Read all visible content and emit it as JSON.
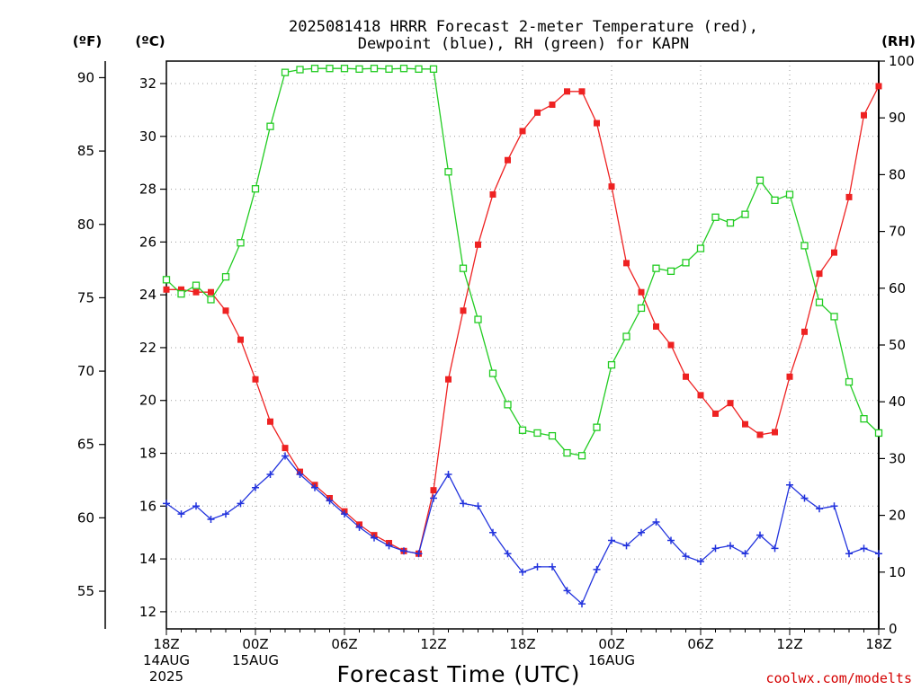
{
  "chart_data": {
    "type": "line",
    "title_line1": "2025081418 HRRR Forecast 2-meter Temperature (red),",
    "title_line2": "Dewpoint (blue), RH (green) for KAPN",
    "xlabel": "Forecast Time (UTC)",
    "credit": "coolwx.com/modelts",
    "unit_f": "(ºF)",
    "unit_c": "(ºC)",
    "unit_rh": "(RH)",
    "x_hours_range": [
      0,
      48
    ],
    "celsius_range": [
      11.35,
      32.85
    ],
    "rh_range": [
      0,
      100
    ],
    "left_f_ticks": [
      "90",
      "85",
      "80",
      "75",
      "70",
      "65",
      "60",
      "55"
    ],
    "left_f_values": [
      90,
      85,
      80,
      75,
      70,
      65,
      60,
      55
    ],
    "left_c_ticks": [
      "32",
      "30",
      "28",
      "26",
      "24",
      "22",
      "20",
      "18",
      "16",
      "14",
      "12"
    ],
    "left_c_values": [
      32,
      30,
      28,
      26,
      24,
      22,
      20,
      18,
      16,
      14,
      12
    ],
    "right_rh_ticks": [
      "100",
      "90",
      "80",
      "70",
      "60",
      "50",
      "40",
      "30",
      "20",
      "10",
      "0"
    ],
    "right_rh_values": [
      100,
      90,
      80,
      70,
      60,
      50,
      40,
      30,
      20,
      10,
      0
    ],
    "x_ticks": [
      {
        "hour": 0,
        "label": "18Z",
        "sub1": "14AUG",
        "sub2": "2025"
      },
      {
        "hour": 6,
        "label": "00Z",
        "sub1": "15AUG",
        "sub2": ""
      },
      {
        "hour": 12,
        "label": "06Z",
        "sub1": "",
        "sub2": ""
      },
      {
        "hour": 18,
        "label": "12Z",
        "sub1": "",
        "sub2": ""
      },
      {
        "hour": 24,
        "label": "18Z",
        "sub1": "",
        "sub2": ""
      },
      {
        "hour": 30,
        "label": "00Z",
        "sub1": "16AUG",
        "sub2": ""
      },
      {
        "hour": 36,
        "label": "06Z",
        "sub1": "",
        "sub2": ""
      },
      {
        "hour": 42,
        "label": "12Z",
        "sub1": "",
        "sub2": ""
      },
      {
        "hour": 48,
        "label": "18Z",
        "sub1": "",
        "sub2": ""
      }
    ],
    "series": [
      {
        "name": "Temperature",
        "axis": "celsius",
        "color": "#ee2222",
        "marker": "filled-square",
        "hours": [
          0,
          1,
          2,
          3,
          4,
          5,
          6,
          7,
          8,
          9,
          10,
          11,
          12,
          13,
          14,
          15,
          16,
          17,
          18,
          19,
          20,
          21,
          22,
          23,
          24,
          25,
          26,
          27,
          28,
          29,
          30,
          31,
          32,
          33,
          34,
          35,
          36,
          37,
          38,
          39,
          40,
          41,
          42,
          43,
          44,
          45,
          46,
          47,
          48
        ],
        "values": [
          24.2,
          24.2,
          24.1,
          24.1,
          23.4,
          22.3,
          20.8,
          19.2,
          18.2,
          17.3,
          16.8,
          16.3,
          15.8,
          15.3,
          14.9,
          14.6,
          14.3,
          14.2,
          16.6,
          20.8,
          23.4,
          25.9,
          27.8,
          29.1,
          30.2,
          30.9,
          31.2,
          31.7,
          31.7,
          30.5,
          28.1,
          25.2,
          24.1,
          22.8,
          22.1,
          20.9,
          20.2,
          19.5,
          19.9,
          19.1,
          18.7,
          18.8,
          20.9,
          22.6,
          24.8,
          25.6,
          27.7,
          30.8,
          31.9
        ]
      },
      {
        "name": "Dewpoint",
        "axis": "celsius",
        "color": "#2233dd",
        "marker": "plus",
        "hours": [
          0,
          1,
          2,
          3,
          4,
          5,
          6,
          7,
          8,
          9,
          10,
          11,
          12,
          13,
          14,
          15,
          16,
          17,
          18,
          19,
          20,
          21,
          22,
          23,
          24,
          25,
          26,
          27,
          28,
          29,
          30,
          31,
          32,
          33,
          34,
          35,
          36,
          37,
          38,
          39,
          40,
          41,
          42,
          43,
          44,
          45,
          46,
          47,
          48
        ],
        "values": [
          16.1,
          15.7,
          16.0,
          15.5,
          15.7,
          16.1,
          16.7,
          17.2,
          17.9,
          17.2,
          16.7,
          16.2,
          15.7,
          15.2,
          14.8,
          14.5,
          14.3,
          14.2,
          16.3,
          17.2,
          16.1,
          16.0,
          15.0,
          14.2,
          13.5,
          13.7,
          13.7,
          12.8,
          12.3,
          13.6,
          14.7,
          14.5,
          15.0,
          15.4,
          14.7,
          14.1,
          13.9,
          14.4,
          14.5,
          14.2,
          14.9,
          14.4,
          16.8,
          16.3,
          15.9,
          16.0,
          14.2,
          14.4,
          14.2
        ]
      },
      {
        "name": "RH",
        "axis": "rh",
        "color": "#22cc22",
        "marker": "open-square",
        "hours": [
          0,
          1,
          2,
          3,
          4,
          5,
          6,
          7,
          8,
          9,
          10,
          11,
          12,
          13,
          14,
          15,
          16,
          17,
          18,
          19,
          20,
          21,
          22,
          23,
          24,
          25,
          26,
          27,
          28,
          29,
          30,
          31,
          32,
          33,
          34,
          35,
          36,
          37,
          38,
          39,
          40,
          41,
          42,
          43,
          44,
          45,
          46,
          47,
          48
        ],
        "values": [
          61.5,
          59,
          60.5,
          58,
          62,
          68,
          77.5,
          88.5,
          98,
          98.5,
          98.7,
          98.7,
          98.7,
          98.6,
          98.7,
          98.6,
          98.7,
          98.6,
          98.6,
          80.5,
          63.5,
          54.5,
          45,
          39.5,
          35,
          34.5,
          34,
          31,
          30.5,
          35.5,
          46.5,
          51.5,
          56.5,
          63.5,
          63,
          64.5,
          67,
          72.5,
          71.5,
          73,
          79,
          75.5,
          76.5,
          67.5,
          57.5,
          55,
          43.5,
          37,
          34.5
        ]
      }
    ]
  }
}
